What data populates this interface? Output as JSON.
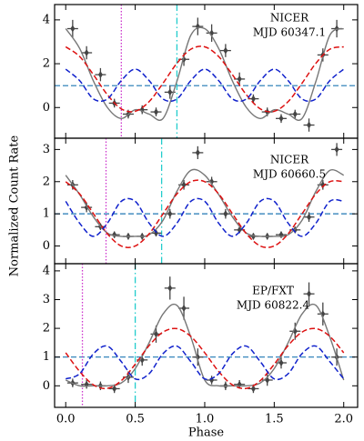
{
  "chart_data": [
    {
      "type": "line",
      "annotations": [
        "NICER",
        "MJD 60347.1"
      ],
      "xlim": [
        -0.08,
        2.1
      ],
      "ylim": [
        -1.4,
        4.7
      ],
      "yticks": [
        0,
        2,
        4
      ],
      "xticks": [
        {
          "value": 0,
          "label": "0.0"
        },
        {
          "value": 0.5,
          "label": "0.5"
        },
        {
          "value": 1,
          "label": "1.0"
        },
        {
          "value": 1.5,
          "label": "1.5"
        },
        {
          "value": 2,
          "label": "2.0"
        }
      ],
      "vlines": [
        {
          "x": 0.4,
          "color": "#cc33cc",
          "style": "dotted"
        },
        {
          "x": 0.8,
          "color": "#22cccc",
          "style": "dashdot"
        }
      ],
      "hlines": [
        {
          "y": 1,
          "color": "#1f77b4",
          "style": "dashed"
        }
      ],
      "series": [
        {
          "kind": "points",
          "color": "#444444",
          "x": [
            0.05,
            0.15,
            0.25,
            0.35,
            0.45,
            0.55,
            0.65,
            0.75,
            0.85,
            0.95,
            1.05,
            1.15,
            1.25,
            1.35,
            1.45,
            1.55,
            1.65,
            1.75,
            1.85,
            1.95
          ],
          "values": [
            3.6,
            2.5,
            1.5,
            0.2,
            -0.3,
            -0.1,
            -0.2,
            0.7,
            2.2,
            3.7,
            3.4,
            2.6,
            1.3,
            0.4,
            -0.2,
            -0.5,
            -0.3,
            -0.8,
            2.4,
            3.6
          ],
          "errors": [
            0.4,
            0.3,
            0.3,
            0.2,
            0.2,
            0.2,
            0.2,
            0.3,
            0.3,
            0.4,
            0.4,
            0.3,
            0.3,
            0.2,
            0.2,
            0.2,
            0.2,
            0.3,
            0.3,
            0.4
          ]
        },
        {
          "kind": "curve",
          "color": "#777777",
          "style": "solid",
          "x": [
            0,
            0.1,
            0.2,
            0.3,
            0.4,
            0.5,
            0.6,
            0.7,
            0.8,
            0.9,
            1,
            1.1,
            1.2,
            1.3,
            1.4,
            1.5,
            1.6,
            1.7,
            1.8,
            1.9,
            2
          ],
          "values": [
            3.6,
            2.7,
            1.2,
            0.0,
            -0.5,
            -0.1,
            -0.3,
            -0.5,
            1.2,
            3.3,
            3.6,
            2.7,
            1.2,
            0.0,
            -0.5,
            -0.1,
            -0.3,
            -0.5,
            1.2,
            3.3,
            3.6
          ]
        },
        {
          "kind": "curve",
          "color": "#dd1111",
          "style": "dashed",
          "x": [
            0,
            0.1,
            0.2,
            0.3,
            0.4,
            0.5,
            0.6,
            0.7,
            0.8,
            0.9,
            1,
            1.1,
            1.2,
            1.3,
            1.4,
            1.5,
            1.6,
            1.7,
            1.8,
            1.9,
            2
          ],
          "values": [
            2.77,
            2.33,
            1.49,
            0.58,
            -0.06,
            -0.17,
            0.27,
            1.11,
            2.02,
            2.66,
            2.77,
            2.33,
            1.49,
            0.58,
            -0.06,
            -0.17,
            0.27,
            1.11,
            2.02,
            2.66,
            2.77
          ]
        },
        {
          "kind": "curve",
          "color": "#1122cc",
          "style": "dashed",
          "x": [
            0,
            0.1,
            0.2,
            0.3,
            0.4,
            0.5,
            0.6,
            0.7,
            0.8,
            0.9,
            1,
            1.1,
            1.2,
            1.3,
            1.4,
            1.5,
            1.6,
            1.7,
            1.8,
            1.9,
            2
          ],
          "values": [
            1.75,
            1.23,
            0.39,
            0.39,
            1.23,
            1.75,
            1.23,
            0.39,
            0.39,
            1.23,
            1.75,
            1.23,
            0.39,
            0.39,
            1.23,
            1.75,
            1.23,
            0.39,
            0.39,
            1.23,
            1.75
          ]
        }
      ]
    },
    {
      "type": "line",
      "annotations": [
        "NICER",
        "MJD 60660.5"
      ],
      "ylabel": "Normalized Count Rate",
      "xlim": [
        -0.08,
        2.1
      ],
      "ylim": [
        -0.55,
        3.35
      ],
      "yticks": [
        0,
        1,
        2,
        3
      ],
      "xticks": [
        {
          "value": 0,
          "label": "0.0"
        },
        {
          "value": 0.5,
          "label": "0.5"
        },
        {
          "value": 1,
          "label": "1.0"
        },
        {
          "value": 1.5,
          "label": "1.5"
        },
        {
          "value": 2,
          "label": "2.0"
        }
      ],
      "vlines": [
        {
          "x": 0.29,
          "color": "#cc33cc",
          "style": "dotted"
        },
        {
          "x": 0.69,
          "color": "#22cccc",
          "style": "dashdot"
        }
      ],
      "hlines": [
        {
          "y": 1,
          "color": "#1f77b4",
          "style": "dashed"
        }
      ],
      "series": [
        {
          "kind": "points",
          "color": "#444444",
          "x": [
            0.05,
            0.15,
            0.25,
            0.35,
            0.45,
            0.55,
            0.65,
            0.75,
            0.85,
            0.95,
            1.05,
            1.15,
            1.25,
            1.35,
            1.45,
            1.55,
            1.65,
            1.75,
            1.85,
            1.95
          ],
          "values": [
            1.9,
            1.2,
            0.6,
            0.35,
            0.3,
            0.3,
            0.4,
            1.0,
            1.9,
            2.9,
            2.0,
            1.0,
            0.5,
            0.3,
            0.3,
            0.35,
            0.5,
            0.9,
            1.9,
            3.0
          ],
          "errors": [
            0.15,
            0.15,
            0.1,
            0.1,
            0.1,
            0.1,
            0.1,
            0.15,
            0.15,
            0.2,
            0.15,
            0.15,
            0.1,
            0.1,
            0.1,
            0.1,
            0.1,
            0.15,
            0.15,
            0.2
          ]
        },
        {
          "kind": "curve",
          "color": "#777777",
          "style": "solid",
          "x": [
            0,
            0.1,
            0.2,
            0.3,
            0.4,
            0.5,
            0.6,
            0.7,
            0.8,
            0.9,
            1,
            1.1,
            1.2,
            1.3,
            1.4,
            1.5,
            1.6,
            1.7,
            1.8,
            1.9,
            2
          ],
          "values": [
            2.2,
            1.6,
            0.9,
            0.4,
            0.3,
            0.3,
            0.35,
            0.8,
            1.7,
            2.35,
            2.2,
            1.6,
            0.9,
            0.4,
            0.3,
            0.3,
            0.35,
            0.8,
            1.7,
            2.35,
            2.2
          ]
        },
        {
          "kind": "curve",
          "color": "#dd1111",
          "style": "dashed",
          "x": [
            0,
            0.1,
            0.2,
            0.3,
            0.4,
            0.5,
            0.6,
            0.7,
            0.8,
            0.9,
            1,
            1.1,
            1.2,
            1.3,
            1.4,
            1.5,
            1.6,
            1.7,
            1.8,
            1.9,
            2
          ],
          "values": [
            2.0,
            1.62,
            1.0,
            0.38,
            0.0,
            0.0,
            0.38,
            1.0,
            1.62,
            2.0,
            2.0,
            1.62,
            1.0,
            0.38,
            0.0,
            0.0,
            0.38,
            1.0,
            1.62,
            2.0,
            2.0
          ]
        },
        {
          "kind": "curve",
          "color": "#1122cc",
          "style": "dashed",
          "x": [
            0,
            0.1,
            0.2,
            0.3,
            0.4,
            0.5,
            0.6,
            0.7,
            0.8,
            0.9,
            1,
            1.1,
            1.2,
            1.3,
            1.4,
            1.5,
            1.6,
            1.7,
            1.8,
            1.9,
            2
          ],
          "values": [
            1.39,
            0.71,
            0.3,
            0.71,
            1.39,
            1.39,
            0.71,
            0.3,
            0.71,
            1.39,
            1.39,
            0.71,
            0.3,
            0.71,
            1.39,
            1.39,
            0.71,
            0.3,
            0.71,
            1.39,
            1.39
          ]
        }
      ]
    },
    {
      "type": "line",
      "annotations": [
        "EP/FXT",
        "MJD 60822.4"
      ],
      "xlabel": "Phase",
      "xlim": [
        -0.08,
        2.1
      ],
      "ylim": [
        -0.75,
        4.25
      ],
      "yticks": [
        0,
        1,
        2,
        3,
        4
      ],
      "xticks": [
        {
          "value": 0,
          "label": "0.0"
        },
        {
          "value": 0.5,
          "label": "0.5"
        },
        {
          "value": 1,
          "label": "1.0"
        },
        {
          "value": 1.5,
          "label": "1.5"
        },
        {
          "value": 2,
          "label": "2.0"
        }
      ],
      "vlines": [
        {
          "x": 0.12,
          "color": "#cc33cc",
          "style": "dotted"
        },
        {
          "x": 0.5,
          "color": "#22cccc",
          "style": "dashdot"
        }
      ],
      "hlines": [
        {
          "y": 1,
          "color": "#1f77b4",
          "style": "dashed"
        }
      ],
      "series": [
        {
          "kind": "points",
          "color": "#444444",
          "x": [
            0.05,
            0.15,
            0.25,
            0.35,
            0.45,
            0.55,
            0.65,
            0.75,
            0.85,
            0.95,
            1.05,
            1.15,
            1.25,
            1.35,
            1.45,
            1.55,
            1.65,
            1.75,
            1.85,
            1.95
          ],
          "values": [
            0.1,
            0.05,
            0.0,
            -0.1,
            0.3,
            0.9,
            1.8,
            3.4,
            2.7,
            1.0,
            0.2,
            0.0,
            0.05,
            -0.1,
            0.2,
            0.8,
            1.9,
            3.2,
            2.5,
            1.0
          ],
          "errors": [
            0.15,
            0.15,
            0.15,
            0.15,
            0.2,
            0.2,
            0.3,
            0.4,
            0.4,
            0.3,
            0.15,
            0.15,
            0.15,
            0.15,
            0.2,
            0.2,
            0.3,
            0.4,
            0.4,
            0.3
          ]
        },
        {
          "kind": "curve",
          "color": "#777777",
          "style": "solid",
          "x": [
            0,
            0.1,
            0.2,
            0.3,
            0.4,
            0.5,
            0.6,
            0.7,
            0.8,
            0.9,
            1,
            1.1,
            1.2,
            1.3,
            1.4,
            1.5,
            1.6,
            1.7,
            1.8,
            1.9,
            2
          ],
          "values": [
            0.2,
            0.0,
            0.0,
            0.0,
            0.1,
            0.6,
            1.5,
            2.5,
            2.8,
            1.7,
            0.2,
            0.0,
            0.0,
            0.0,
            0.1,
            0.6,
            1.5,
            2.5,
            2.8,
            1.7,
            0.2
          ]
        },
        {
          "kind": "curve",
          "color": "#dd1111",
          "style": "dashed",
          "x": [
            0,
            0.1,
            0.2,
            0.3,
            0.4,
            0.5,
            0.6,
            0.7,
            0.8,
            0.9,
            1,
            1.1,
            1.2,
            1.3,
            1.4,
            1.5,
            1.6,
            1.7,
            1.8,
            1.9,
            2
          ],
          "values": [
            1.15,
            0.5,
            0.03,
            -0.09,
            0.18,
            0.75,
            1.4,
            1.87,
            1.99,
            1.72,
            1.15,
            0.5,
            0.03,
            -0.09,
            0.18,
            0.75,
            1.4,
            1.87,
            1.99,
            1.72,
            1.15
          ]
        },
        {
          "kind": "curve",
          "color": "#1122cc",
          "style": "dashed",
          "x": [
            0,
            0.1,
            0.2,
            0.3,
            0.4,
            0.5,
            0.6,
            0.7,
            0.8,
            0.9,
            1,
            1.1,
            1.2,
            1.3,
            1.4,
            1.5,
            1.6,
            1.7,
            1.8,
            1.9,
            2
          ],
          "values": [
            0.24,
            0.42,
            1.12,
            1.38,
            0.84,
            0.24,
            0.42,
            1.12,
            1.38,
            0.84,
            0.24,
            0.42,
            1.12,
            1.38,
            0.84,
            0.24,
            0.42,
            1.12,
            1.38,
            0.84,
            0.24
          ]
        }
      ]
    }
  ]
}
